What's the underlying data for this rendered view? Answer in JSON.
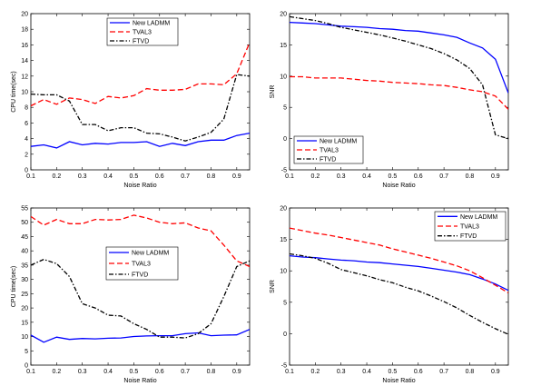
{
  "chart_data": [
    {
      "type": "line",
      "xlabel": "Noise Ratio",
      "ylabel": "CPU time(sec)",
      "xlim": [
        0.1,
        0.95
      ],
      "ylim": [
        0,
        20
      ],
      "xticks": [
        0.1,
        0.2,
        0.3,
        0.4,
        0.5,
        0.6,
        0.7,
        0.8,
        0.9
      ],
      "xtick_labels": [
        "0.1",
        "0.2",
        "0.3",
        "0.4",
        "0.5",
        "0.6",
        "0.7",
        "0.8",
        "0.9"
      ],
      "yticks": [
        0,
        2,
        4,
        6,
        8,
        10,
        12,
        14,
        16,
        18,
        20
      ],
      "ytick_labels": [
        "0",
        "2",
        "4",
        "6",
        "8",
        "10",
        "12",
        "14",
        "16",
        "18",
        "20"
      ],
      "legend_position": "top-left",
      "x": [
        0.1,
        0.15,
        0.2,
        0.25,
        0.3,
        0.35,
        0.4,
        0.45,
        0.5,
        0.55,
        0.6,
        0.65,
        0.7,
        0.75,
        0.8,
        0.85,
        0.9,
        0.95
      ],
      "series": [
        {
          "name": "New LADMM",
          "color": "#0000ff",
          "dash": "solid",
          "values": [
            3.0,
            3.2,
            2.8,
            3.6,
            3.2,
            3.4,
            3.3,
            3.5,
            3.5,
            3.6,
            3.0,
            3.4,
            3.1,
            3.6,
            3.8,
            3.8,
            4.4,
            4.7
          ]
        },
        {
          "name": "TVAL3",
          "color": "#ff0000",
          "dash": "dashed",
          "values": [
            8.2,
            9.0,
            8.4,
            9.2,
            9.0,
            8.5,
            9.4,
            9.2,
            9.5,
            10.4,
            10.2,
            10.2,
            10.3,
            11.0,
            11.0,
            10.9,
            12.3,
            16.3
          ]
        },
        {
          "name": "FTVD",
          "color": "#000000",
          "dash": "dashdot",
          "values": [
            9.7,
            9.6,
            9.6,
            8.8,
            5.8,
            5.8,
            5.0,
            5.4,
            5.4,
            4.7,
            4.6,
            4.2,
            3.7,
            4.2,
            4.8,
            6.5,
            12.2,
            12.0
          ]
        }
      ]
    },
    {
      "type": "line",
      "xlabel": "Noise Ratio",
      "ylabel": "SNR",
      "xlim": [
        0.1,
        0.95
      ],
      "ylim": [
        -5,
        20
      ],
      "xticks": [
        0.1,
        0.2,
        0.3,
        0.4,
        0.5,
        0.6,
        0.7,
        0.8,
        0.9
      ],
      "xtick_labels": [
        "0.1",
        "0.2",
        "0.3",
        "0.4",
        "0.5",
        "0.6",
        "0.7",
        "0.8",
        "0.9"
      ],
      "yticks": [
        -5,
        0,
        5,
        10,
        15,
        20
      ],
      "ytick_labels": [
        "-5",
        "0",
        "5",
        "10",
        "15",
        "20"
      ],
      "legend_position": "middle-left",
      "x": [
        0.1,
        0.15,
        0.2,
        0.25,
        0.3,
        0.35,
        0.4,
        0.45,
        0.5,
        0.55,
        0.6,
        0.65,
        0.7,
        0.75,
        0.8,
        0.85,
        0.9,
        0.95
      ],
      "series": [
        {
          "name": "New LADMM",
          "color": "#0000ff",
          "dash": "solid",
          "values": [
            18.6,
            18.5,
            18.4,
            18.2,
            18.0,
            17.9,
            17.8,
            17.6,
            17.5,
            17.3,
            17.2,
            16.9,
            16.6,
            16.2,
            15.3,
            14.5,
            12.7,
            7.3
          ]
        },
        {
          "name": "TVAL3",
          "color": "#ff0000",
          "dash": "dashed",
          "values": [
            9.9,
            9.9,
            9.7,
            9.7,
            9.7,
            9.5,
            9.3,
            9.2,
            9.0,
            8.9,
            8.8,
            8.6,
            8.5,
            8.2,
            7.8,
            7.5,
            6.8,
            4.7
          ]
        },
        {
          "name": "FTVD",
          "color": "#000000",
          "dash": "dashdot",
          "values": [
            19.5,
            19.2,
            18.9,
            18.4,
            17.8,
            17.4,
            17.0,
            16.6,
            16.1,
            15.6,
            15.0,
            14.4,
            13.6,
            12.6,
            11.2,
            8.6,
            0.6,
            0.0
          ]
        }
      ]
    },
    {
      "type": "line",
      "xlabel": "Noise Ratio",
      "ylabel": "CPU time(sec)",
      "xlim": [
        0.1,
        0.95
      ],
      "ylim": [
        0,
        55
      ],
      "xticks": [
        0.1,
        0.2,
        0.3,
        0.4,
        0.5,
        0.6,
        0.7,
        0.8,
        0.9
      ],
      "xtick_labels": [
        "0.1",
        "0.2",
        "0.3",
        "0.4",
        "0.5",
        "0.6",
        "0.7",
        "0.8",
        "0.9"
      ],
      "yticks": [
        0,
        5,
        10,
        15,
        20,
        25,
        30,
        35,
        40,
        45,
        50,
        55
      ],
      "ytick_labels": [
        "0",
        "5",
        "10",
        "15",
        "20",
        "25",
        "30",
        "35",
        "40",
        "45",
        "50",
        "55"
      ],
      "legend_position": "middle-center",
      "x": [
        0.1,
        0.15,
        0.2,
        0.25,
        0.3,
        0.35,
        0.4,
        0.45,
        0.5,
        0.55,
        0.6,
        0.65,
        0.7,
        0.75,
        0.8,
        0.85,
        0.9,
        0.95
      ],
      "series": [
        {
          "name": "New LADMM",
          "color": "#0000ff",
          "dash": "solid",
          "values": [
            10.5,
            8.0,
            9.8,
            9.0,
            9.3,
            9.2,
            9.4,
            9.5,
            10.0,
            10.2,
            10.3,
            10.3,
            11.0,
            11.3,
            10.3,
            10.5,
            10.6,
            12.5
          ]
        },
        {
          "name": "TVAL3",
          "color": "#ff0000",
          "dash": "dashed",
          "values": [
            52.0,
            49.0,
            51.0,
            49.5,
            49.5,
            51.0,
            50.8,
            51.0,
            52.5,
            51.5,
            50.0,
            49.5,
            49.8,
            48.0,
            47.0,
            42.0,
            36.5,
            34.5
          ]
        },
        {
          "name": "FTVD",
          "color": "#000000",
          "dash": "dashdot",
          "values": [
            35.0,
            37.0,
            35.5,
            31.0,
            21.5,
            20.0,
            17.5,
            17.2,
            14.5,
            12.5,
            9.8,
            9.8,
            9.5,
            11.0,
            14.5,
            24.0,
            34.5,
            36.5
          ]
        }
      ]
    },
    {
      "type": "line",
      "xlabel": "Noise Ratio",
      "ylabel": "SNR",
      "xlim": [
        0.1,
        0.95
      ],
      "ylim": [
        -5,
        20
      ],
      "xticks": [
        0.1,
        0.2,
        0.3,
        0.4,
        0.5,
        0.6,
        0.7,
        0.8,
        0.9
      ],
      "xtick_labels": [
        "0.1",
        "0.2",
        "0.3",
        "0.4",
        "0.5",
        "0.6",
        "0.7",
        "0.8",
        "0.9"
      ],
      "yticks": [
        -5,
        0,
        5,
        10,
        15,
        20
      ],
      "ytick_labels": [
        "-5",
        "0",
        "5",
        "10",
        "15",
        "20"
      ],
      "legend_position": "top-right",
      "x": [
        0.1,
        0.15,
        0.2,
        0.25,
        0.3,
        0.35,
        0.4,
        0.45,
        0.5,
        0.55,
        0.6,
        0.65,
        0.7,
        0.75,
        0.8,
        0.85,
        0.9,
        0.95
      ],
      "series": [
        {
          "name": "New LADMM",
          "color": "#0000ff",
          "dash": "solid",
          "values": [
            12.4,
            12.2,
            12.1,
            11.9,
            11.7,
            11.6,
            11.4,
            11.3,
            11.1,
            10.9,
            10.7,
            10.4,
            10.1,
            9.8,
            9.4,
            8.7,
            7.9,
            6.9
          ]
        },
        {
          "name": "TVAL3",
          "color": "#ff0000",
          "dash": "dashed",
          "values": [
            16.8,
            16.4,
            16.0,
            15.7,
            15.3,
            14.9,
            14.5,
            14.1,
            13.5,
            13.0,
            12.5,
            12.0,
            11.4,
            10.8,
            10.0,
            8.9,
            7.7,
            6.5
          ]
        },
        {
          "name": "FTVD",
          "color": "#000000",
          "dash": "dashdot",
          "values": [
            12.7,
            12.4,
            12.0,
            11.2,
            10.2,
            9.7,
            9.2,
            8.6,
            8.1,
            7.4,
            6.8,
            6.0,
            5.1,
            4.1,
            2.9,
            1.8,
            0.8,
            -0.1
          ]
        }
      ]
    }
  ]
}
